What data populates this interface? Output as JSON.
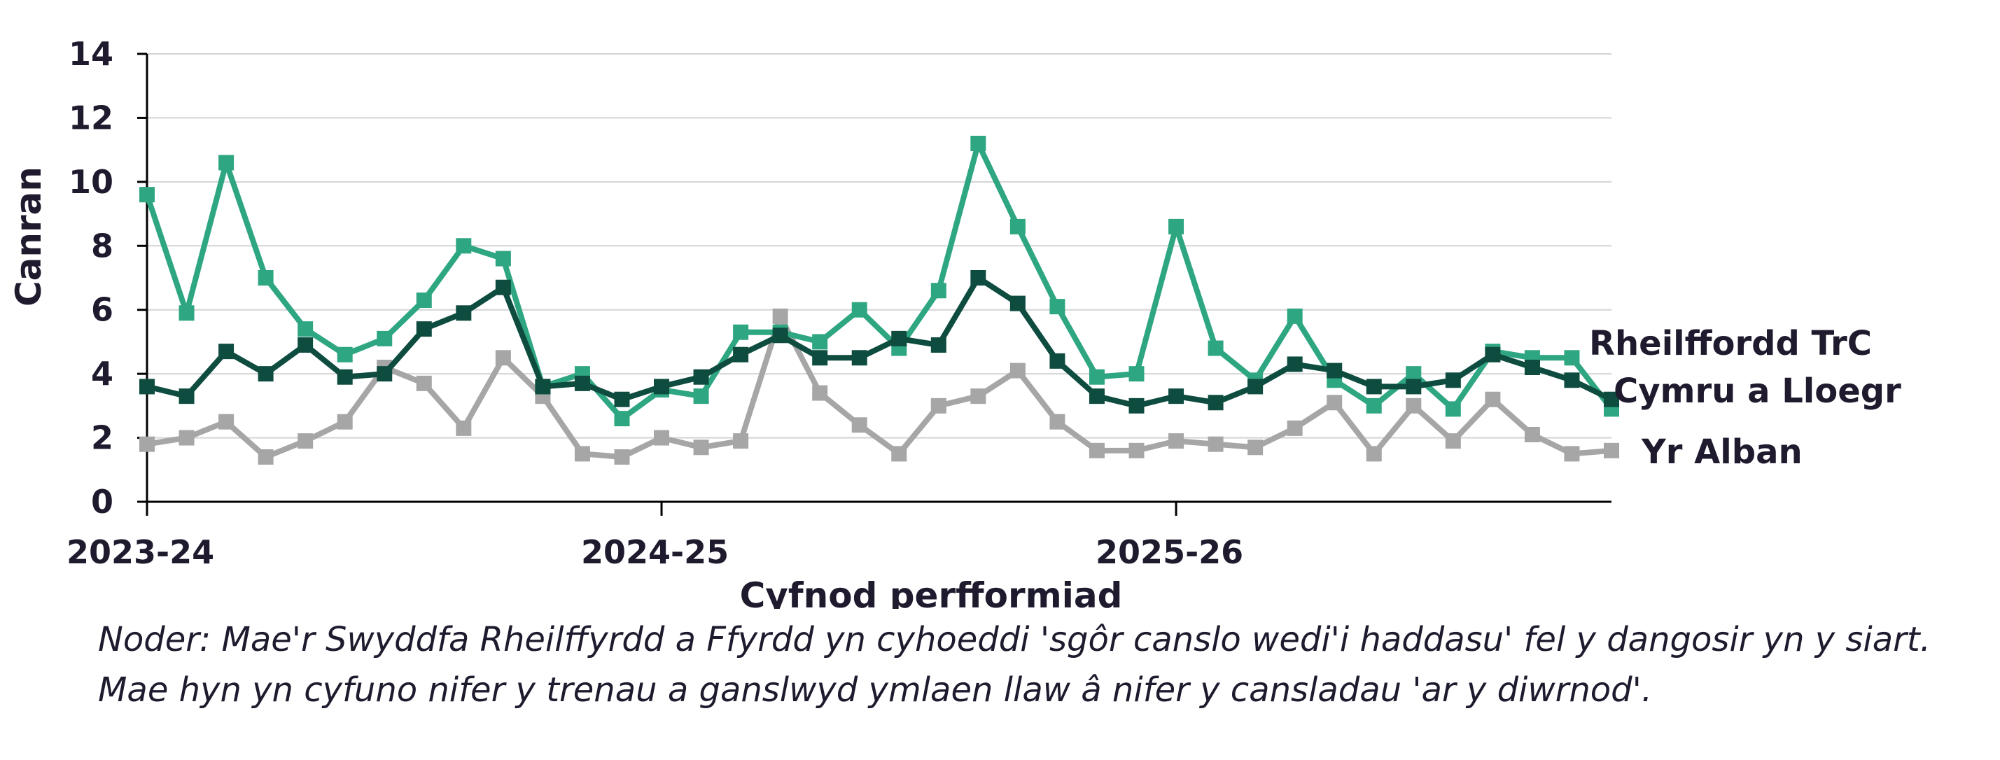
{
  "chart_data": {
    "type": "line",
    "xlabel": "Cyfnod perfformiad",
    "ylabel": "Canran",
    "ylim": [
      0,
      14
    ],
    "yticks": [
      0,
      2,
      4,
      6,
      8,
      10,
      12,
      14
    ],
    "xtick_labels": [
      "2023-24",
      "2024-25",
      "2025-26"
    ],
    "grid": true,
    "legend": "inline labels at right end of lines",
    "series": [
      {
        "name": "Rheilffordd TrC",
        "color": "#2ea682",
        "values": [
          9.6,
          5.9,
          10.6,
          7.0,
          5.4,
          4.6,
          5.1,
          6.3,
          8.0,
          7.6,
          3.6,
          4.0,
          2.6,
          3.5,
          3.3,
          5.3,
          5.3,
          5.0,
          6.0,
          4.8,
          6.6,
          11.2,
          8.6,
          6.1,
          3.9,
          4.0,
          8.6,
          4.8,
          3.8,
          5.8,
          3.8,
          3.0,
          4.0,
          2.9,
          4.7,
          4.5,
          4.5,
          2.9
        ]
      },
      {
        "name": "Cymru a Lloegr",
        "color": "#0e4c40",
        "values": [
          3.6,
          3.3,
          4.7,
          4.0,
          4.9,
          3.9,
          4.0,
          5.4,
          5.9,
          6.7,
          3.6,
          3.7,
          3.2,
          3.6,
          3.9,
          4.6,
          5.2,
          4.5,
          4.5,
          5.1,
          4.9,
          7.0,
          6.2,
          4.4,
          3.3,
          3.0,
          3.3,
          3.1,
          3.6,
          4.3,
          4.1,
          3.6,
          3.6,
          3.8,
          4.6,
          4.2,
          3.8,
          3.2
        ]
      },
      {
        "name": "Yr Alban",
        "color": "#a6a6a6",
        "values": [
          1.8,
          2.0,
          2.5,
          1.4,
          1.9,
          2.5,
          4.2,
          3.7,
          2.3,
          4.5,
          3.3,
          1.5,
          1.4,
          2.0,
          1.7,
          1.9,
          5.8,
          3.4,
          2.4,
          1.5,
          3.0,
          3.3,
          4.1,
          2.5,
          1.6,
          1.6,
          1.9,
          1.8,
          1.7,
          2.3,
          3.1,
          1.5,
          3.0,
          1.9,
          3.2,
          2.1,
          1.5,
          1.6
        ]
      }
    ]
  },
  "note": "Noder: Mae'r Swyddfa Rheilffyrdd a Ffyrdd yn cyhoeddi 'sgôr canslo wedi'i haddasu' fel y dangosir yn y siart. Mae hyn yn cyfuno nifer y trenau a ganslwyd ymlaen llaw â nifer y cansladau 'ar y diwrnod'."
}
